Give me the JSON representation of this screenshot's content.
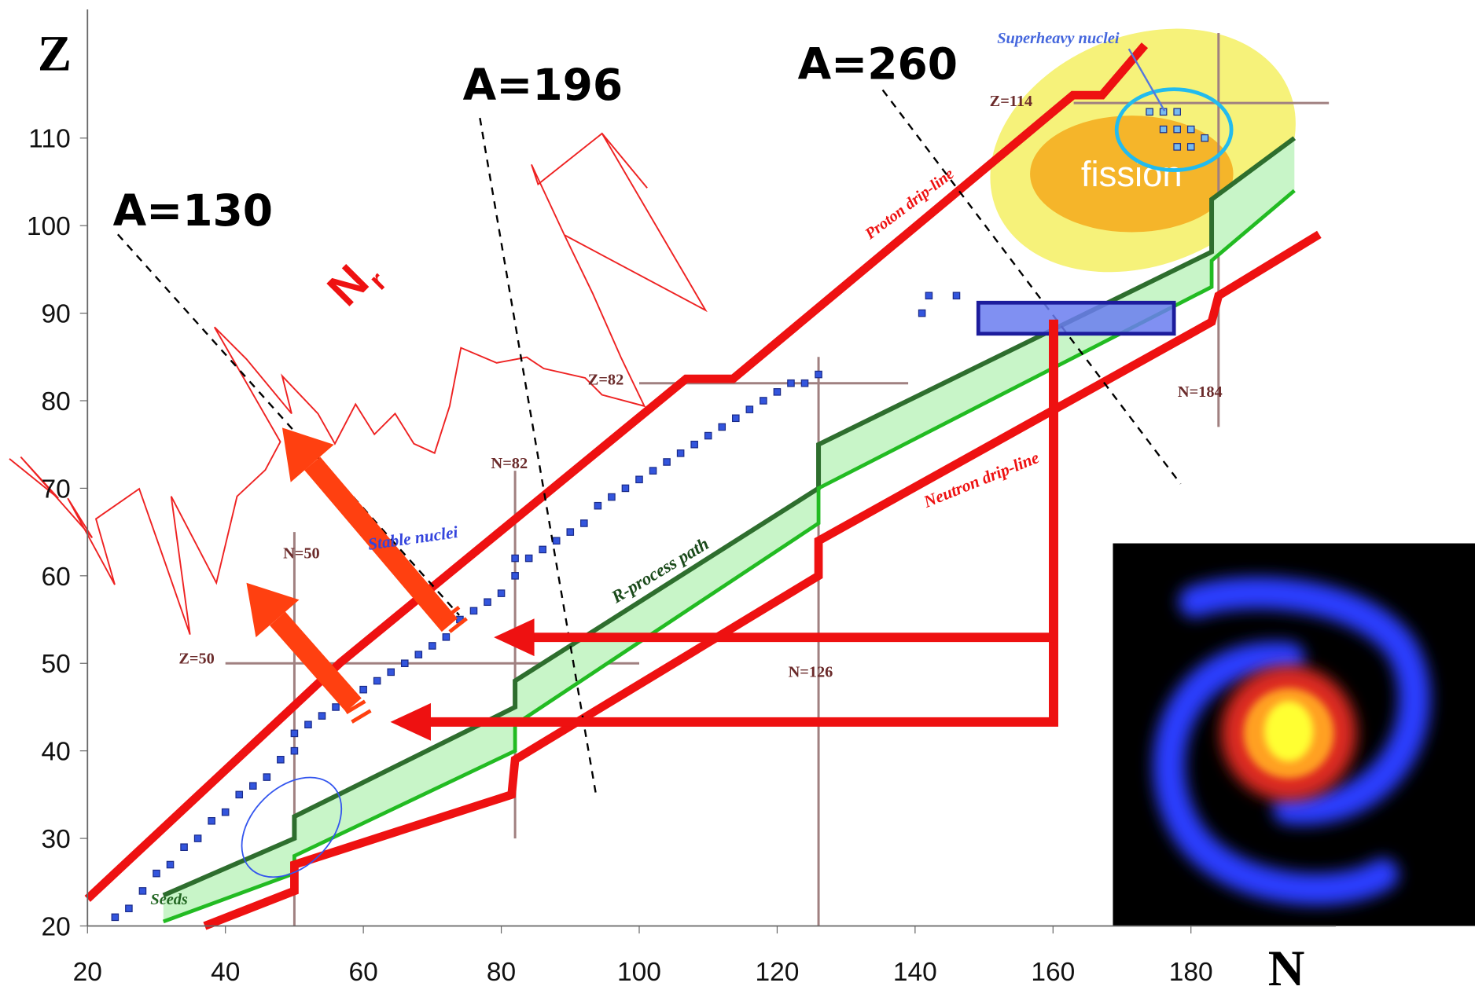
{
  "chart_data": {
    "type": "nuclide-chart",
    "x_label": "N",
    "y_label": "Z",
    "xlim": [
      20,
      201
    ],
    "ylim": [
      20,
      124.7
    ],
    "xticks": [
      20,
      40,
      60,
      80,
      100,
      120,
      140,
      160,
      180
    ],
    "yticks": [
      20,
      30,
      40,
      50,
      60,
      70,
      80,
      90,
      100,
      110
    ],
    "series": [
      {
        "name": "Proton drip-line",
        "color": "#ee1111",
        "x": [
          20,
          56.7,
          106.8,
          113.6,
          162.9,
          167.1,
          173.3
        ],
        "y": [
          23.1,
          50.1,
          82.5,
          82.5,
          114.9,
          114.9,
          120.6
        ]
      },
      {
        "name": "Neutron drip-line",
        "color": "#ee1111",
        "x": [
          37,
          50,
          50,
          81.5,
          82,
          126,
          126,
          183,
          184,
          198.6
        ],
        "y": [
          20,
          24,
          27,
          35,
          39,
          60,
          64,
          89,
          92,
          99
        ]
      }
    ],
    "r_process": {
      "name": "R-process path",
      "upper_color": "#2e6e2e",
      "lower_color": "#22bb22",
      "fill": "#c8f5c8",
      "x": [
        31,
        50,
        50,
        82,
        82,
        126,
        126,
        183,
        183,
        195
      ],
      "upper": [
        23.5,
        30,
        32.5,
        45,
        48,
        70,
        75,
        97,
        103,
        110
      ],
      "lower": [
        20.5,
        26,
        28,
        40,
        43,
        66,
        70,
        93,
        96,
        104
      ]
    },
    "stable_nuclei": {
      "name": "Stable nuclei",
      "color": "#3355dd",
      "x": [
        24,
        26,
        28,
        30,
        32,
        34,
        36,
        38,
        40,
        42,
        44,
        46,
        48,
        50,
        50,
        52,
        54,
        56,
        58,
        60,
        62,
        64,
        66,
        68,
        70,
        72,
        74,
        76,
        78,
        80,
        82,
        82,
        84,
        86,
        88,
        90,
        92,
        94,
        96,
        98,
        100,
        102,
        104,
        106,
        108,
        110,
        112,
        114,
        116,
        118,
        120,
        122,
        124,
        126,
        142,
        146,
        141
      ],
      "y": [
        21,
        22,
        24,
        26,
        27,
        29,
        30,
        32,
        33,
        35,
        36,
        37,
        39,
        40,
        42,
        43,
        44,
        45,
        46,
        47,
        48,
        49,
        50,
        51,
        52,
        53,
        55,
        56,
        57,
        58,
        60,
        62,
        62,
        63,
        64,
        65,
        66,
        68,
        69,
        70,
        71,
        72,
        73,
        74,
        75,
        76,
        77,
        78,
        79,
        80,
        81,
        82,
        82,
        83,
        92,
        92,
        90
      ]
    },
    "superheavy": {
      "name": "Superheavy nuclei",
      "color": "#77bbee",
      "x": [
        174,
        176,
        178,
        176,
        178,
        180,
        178,
        180,
        182
      ],
      "y": [
        113,
        113,
        113,
        111,
        111,
        111,
        109,
        109,
        110
      ]
    },
    "magic_numbers": [
      {
        "label": "N=50",
        "axis": "N",
        "value": 50,
        "range": [
          20,
          65
        ]
      },
      {
        "label": "N=82",
        "axis": "N",
        "value": 82,
        "range": [
          30,
          72
        ]
      },
      {
        "label": "N=126",
        "axis": "N",
        "value": 126,
        "range": [
          20,
          85
        ]
      },
      {
        "label": "N=184",
        "axis": "N",
        "value": 184,
        "range": [
          77,
          122
        ]
      },
      {
        "label": "Z=50",
        "axis": "Z",
        "value": 50,
        "range": [
          40,
          100
        ]
      },
      {
        "label": "Z=82",
        "axis": "Z",
        "value": 82,
        "range": [
          100,
          139
        ]
      },
      {
        "label": "Z=114",
        "axis": "Z",
        "value": 114,
        "range": [
          163,
          200
        ]
      }
    ],
    "mass_lines": [
      {
        "label": "A=130",
        "from": [
          24.4,
          99
        ],
        "to": [
          73.9,
          55.5
        ]
      },
      {
        "label": "A=196",
        "from": [
          76.9,
          112.3
        ],
        "to": [
          93.8,
          34.7
        ]
      },
      {
        "label": "A=260",
        "from": [
          135.3,
          115.5
        ],
        "to": [
          178.5,
          70.5
        ]
      }
    ],
    "nr_label": {
      "main": "N",
      "sub": "r"
    },
    "region_labels": {
      "fission": "fission",
      "seeds": "Seeds"
    }
  }
}
